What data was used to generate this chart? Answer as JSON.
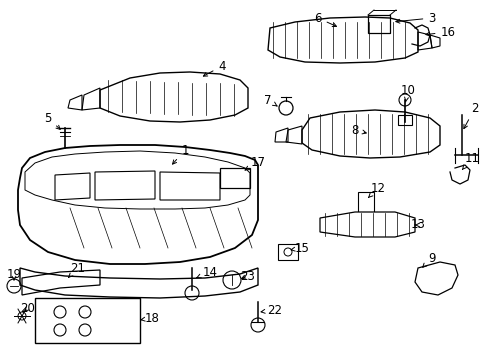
{
  "background_color": "#ffffff",
  "fig_width": 4.89,
  "fig_height": 3.6,
  "dpi": 100,
  "label_fontsize": 8.5,
  "arrow_lw": 0.7,
  "part_lw": 1.0,
  "hatch_lw": 0.5
}
